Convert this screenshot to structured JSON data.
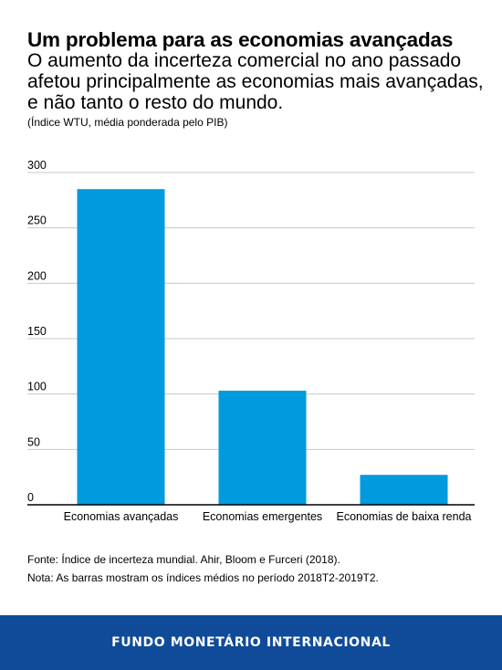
{
  "header": {
    "title": "Um problema para as economias avançadas",
    "subtitle": "O aumento da incerteza comercial no ano passado afetou principalmente as economias mais avançadas, e não tanto o resto do mundo.",
    "units_note": "(Índice WTU, média ponderada pelo PIB)"
  },
  "chart_data": {
    "type": "bar",
    "categories": [
      "Economias avançadas",
      "Economias emergentes",
      "Economias de baixa renda"
    ],
    "values": [
      285,
      103,
      27
    ],
    "ylim": [
      0,
      300
    ],
    "yticks": [
      0,
      50,
      100,
      150,
      200,
      250,
      300
    ],
    "grid": true,
    "colors": {
      "bar": "#009ADE",
      "grid": "#c8c8c8",
      "axis": "#000000"
    }
  },
  "footnotes": {
    "source": "Fonte: Índice de incerteza mundial. Ahir, Bloom e Furceri (2018).",
    "note": "Nota: As barras mostram os índices médios no período 2018T2-2019T2."
  },
  "footer": {
    "org": "FUNDO MONETÁRIO INTERNACIONAL",
    "color": "#104b99"
  }
}
